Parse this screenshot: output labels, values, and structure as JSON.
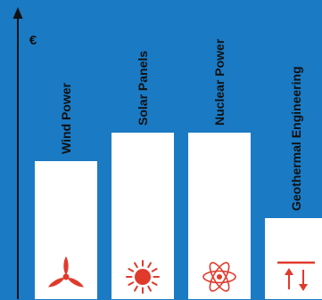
{
  "chart_data": {
    "type": "bar",
    "ylabel": "€",
    "categories": [
      "Wind Power",
      "Solar Panels",
      "Nuclear Power",
      "Geothermal Engineering"
    ],
    "values": [
      155,
      187,
      187,
      91
    ],
    "ylim": [
      0,
      336
    ],
    "icons": [
      "wind-turbine-icon",
      "sun-icon",
      "atom-icon",
      "geothermal-icon"
    ],
    "grid": false
  },
  "colors": {
    "background": "#1a7ac4",
    "bar": "#ffffff",
    "axis": "#111111",
    "icon": "#e03a2c"
  }
}
